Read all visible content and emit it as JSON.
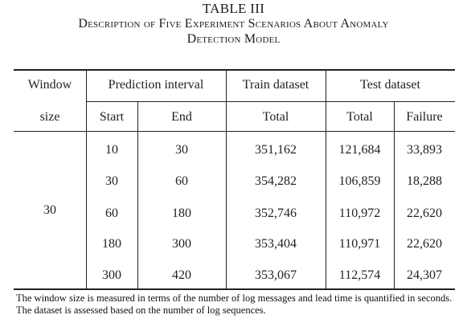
{
  "caption": {
    "label": "TABLE III",
    "title_line1": "Description of Five Experiment Scenarios About Anomaly",
    "title_line2": "Detection Model"
  },
  "headers": {
    "window": "Window",
    "window_size": "size",
    "prediction_interval": "Prediction interval",
    "start": "Start",
    "end": "End",
    "train_dataset": "Train dataset",
    "train_total": "Total",
    "test_dataset": "Test dataset",
    "test_total": "Total",
    "failure": "Failure"
  },
  "window_size_value": "30",
  "rows": [
    {
      "start": "10",
      "end": "30",
      "train_total": "351,162",
      "test_total": "121,684",
      "failure": "33,893"
    },
    {
      "start": "30",
      "end": "60",
      "train_total": "354,282",
      "test_total": "106,859",
      "failure": "18,288"
    },
    {
      "start": "60",
      "end": "180",
      "train_total": "352,746",
      "test_total": "110,972",
      "failure": "22,620"
    },
    {
      "start": "180",
      "end": "300",
      "train_total": "353,404",
      "test_total": "110,971",
      "failure": "22,620"
    },
    {
      "start": "300",
      "end": "420",
      "train_total": "353,067",
      "test_total": "112,574",
      "failure": "24,307"
    }
  ],
  "footnote": "The window size is measured in terms of the number of log messages and lead time is quantified in seconds. The dataset is assessed based on the number of log sequences."
}
